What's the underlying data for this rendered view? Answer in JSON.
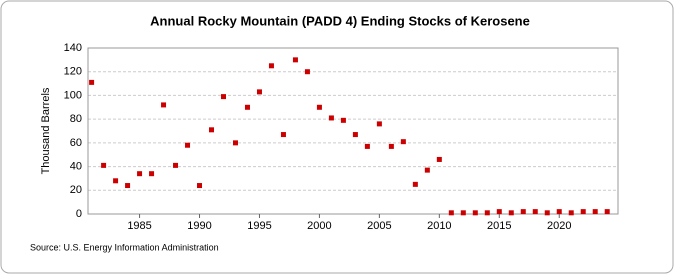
{
  "chart_data": {
    "type": "scatter",
    "title": "Annual Rocky Mountain (PADD 4) Ending Stocks of Kerosene",
    "ylabel": "Thousand Barrels",
    "source": "Source: U.S. Energy Information Administration",
    "color": "#cc0000",
    "x": [
      1981,
      1982,
      1983,
      1984,
      1985,
      1986,
      1987,
      1988,
      1989,
      1990,
      1991,
      1992,
      1993,
      1994,
      1995,
      1996,
      1997,
      1998,
      1999,
      2000,
      2001,
      2002,
      2003,
      2004,
      2005,
      2006,
      2007,
      2008,
      2009,
      2010,
      2011,
      2012,
      2013,
      2014,
      2015,
      2016,
      2017,
      2018,
      2019,
      2020,
      2021,
      2022,
      2023,
      2024
    ],
    "values": [
      111,
      41,
      28,
      24,
      34,
      34,
      92,
      41,
      58,
      24,
      71,
      99,
      60,
      90,
      103,
      125,
      67,
      130,
      120,
      90,
      81,
      79,
      67,
      57,
      76,
      57,
      61,
      25,
      37,
      46,
      1,
      1,
      1,
      1,
      2,
      1,
      2,
      2,
      1,
      2,
      1,
      2,
      2,
      2
    ],
    "xlim": [
      1980.7,
      2024.9
    ],
    "xticks": [
      1985,
      1990,
      1995,
      2000,
      2005,
      2010,
      2015,
      2020
    ],
    "ylim": [
      0,
      140
    ],
    "yticks": [
      0,
      20,
      40,
      60,
      80,
      100,
      120,
      140
    ],
    "grid": true
  }
}
